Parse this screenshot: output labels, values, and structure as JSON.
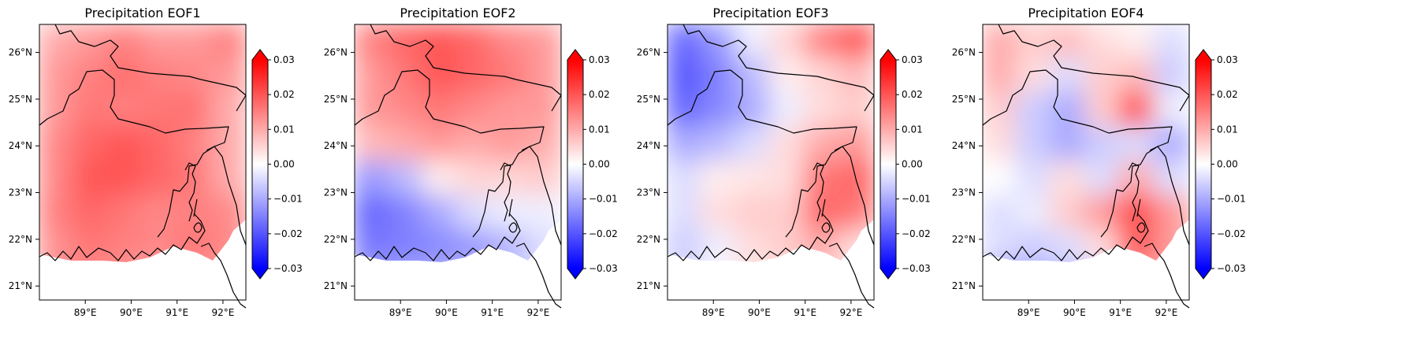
{
  "figure": {
    "panels": [
      {
        "title": "Precipitation EOF1",
        "field": [
          [
            0.01,
            0.012,
            0.015,
            0.012,
            0.012,
            0.015
          ],
          [
            0.012,
            0.015,
            0.017,
            0.015,
            0.014,
            0.012
          ],
          [
            0.012,
            0.016,
            0.015,
            0.016,
            0.017,
            0.01
          ],
          [
            0.014,
            0.018,
            0.02,
            0.018,
            0.015,
            0.01
          ],
          [
            0.014,
            0.02,
            0.02,
            0.018,
            0.016,
            0.01
          ],
          [
            0.015,
            0.018,
            0.016,
            0.014,
            0.015,
            0.014
          ],
          [
            0.013,
            0.016,
            0.015,
            0.014,
            0.016,
            0.014
          ],
          [
            0.013,
            0.014,
            0.012,
            0.01,
            0.012,
            0.01
          ]
        ]
      },
      {
        "title": "Precipitation EOF2",
        "field": [
          [
            0.015,
            0.018,
            0.02,
            0.018,
            0.014,
            0.012
          ],
          [
            0.012,
            0.016,
            0.02,
            0.018,
            0.016,
            0.012
          ],
          [
            0.012,
            0.014,
            0.016,
            0.014,
            0.012,
            0.012
          ],
          [
            0.008,
            0.01,
            0.012,
            0.01,
            0.012,
            0.01
          ],
          [
            -0.012,
            -0.008,
            0.002,
            0.005,
            0.005,
            0.006
          ],
          [
            -0.018,
            -0.015,
            -0.01,
            -0.004,
            -0.002,
            -0.002
          ],
          [
            -0.016,
            -0.015,
            -0.014,
            -0.012,
            -0.009,
            -0.004
          ],
          [
            -0.01,
            -0.01,
            -0.008,
            -0.008,
            -0.006,
            -0.004
          ]
        ]
      },
      {
        "title": "Precipitation EOF3",
        "field": [
          [
            -0.018,
            -0.012,
            -0.002,
            0.005,
            0.015,
            0.02
          ],
          [
            -0.02,
            -0.015,
            -0.008,
            0.002,
            0.005,
            0.008
          ],
          [
            -0.018,
            -0.014,
            -0.01,
            -0.002,
            0.004,
            0.006
          ],
          [
            -0.01,
            -0.008,
            -0.004,
            0.004,
            0.01,
            0.012
          ],
          [
            -0.004,
            0.002,
            0.003,
            0.004,
            0.016,
            0.018
          ],
          [
            -0.004,
            0.004,
            0.006,
            0.006,
            0.018,
            0.016
          ],
          [
            -0.006,
            -0.002,
            0.004,
            0.006,
            0.01,
            0.004
          ],
          [
            -0.004,
            0.0,
            0.003,
            0.004,
            0.006,
            0.002
          ]
        ]
      },
      {
        "title": "Precipitation EOF4",
        "field": [
          [
            0.01,
            0.006,
            0.008,
            0.004,
            0.002,
            -0.004
          ],
          [
            0.01,
            0.004,
            -0.004,
            0.006,
            0.008,
            -0.006
          ],
          [
            0.006,
            -0.006,
            -0.01,
            0.006,
            0.022,
            -0.002
          ],
          [
            0.004,
            -0.006,
            -0.01,
            -0.006,
            -0.004,
            -0.01
          ],
          [
            0.0,
            -0.004,
            0.004,
            -0.004,
            0.01,
            -0.004
          ],
          [
            -0.004,
            -0.002,
            0.006,
            0.012,
            0.022,
            0.012
          ],
          [
            -0.004,
            -0.006,
            -0.004,
            0.004,
            0.02,
            0.012
          ],
          [
            -0.012,
            -0.01,
            -0.008,
            -0.004,
            0.01,
            0.01
          ]
        ]
      }
    ],
    "map": {
      "lon_range": [
        88.0,
        92.5
      ],
      "lat_range": [
        20.7,
        26.6
      ],
      "lon_ticks": [
        89,
        90,
        91,
        92
      ],
      "lon_tick_labels": [
        "89°E",
        "90°E",
        "91°E",
        "92°E"
      ],
      "lat_ticks": [
        21,
        22,
        23,
        24,
        25,
        26
      ],
      "lat_tick_labels": [
        "21°N",
        "22°N",
        "23°N",
        "24°N",
        "25°N",
        "26°N"
      ]
    },
    "colorbar": {
      "range": [
        -0.03,
        0.03
      ],
      "extend": "both",
      "colormap": "bwr",
      "ticks": [
        0.03,
        0.02,
        0.01,
        0.0,
        -0.01,
        -0.02,
        -0.03
      ],
      "tick_labels": [
        "0.03",
        "0.02",
        "0.01",
        "0.00",
        "−0.01",
        "−0.02",
        "−0.03"
      ]
    },
    "colors": {
      "negative": "#0000ff",
      "neutral": "#ffffff",
      "positive": "#ff0000",
      "coastline": "#000000"
    }
  }
}
